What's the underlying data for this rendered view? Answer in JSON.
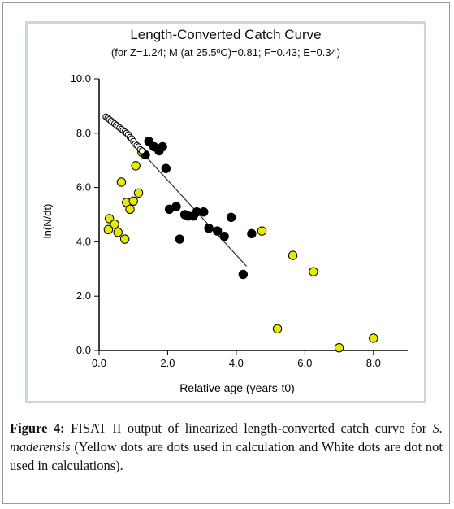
{
  "chart_data": {
    "type": "scatter",
    "title": "Length-Converted Catch Curve",
    "subtitle": "(for Z=1.24; M (at 25.5ºC)=0.81; F=0.43; E=0.34)",
    "xlabel": "Relative age (years-t0)",
    "ylabel": "ln(N/dt)",
    "xlim": [
      0,
      9.0
    ],
    "ylim": [
      0,
      10.0
    ],
    "x_ticks": [
      "0.0",
      "2.0",
      "4.0",
      "6.0",
      "8.0"
    ],
    "y_ticks": [
      "0.0",
      "2.0",
      "4.0",
      "6.0",
      "8.0",
      "10.0"
    ],
    "grid": false,
    "series": [
      {
        "color": "#e8e800",
        "points": [
          [
            0.27,
            4.45
          ],
          [
            0.3,
            4.85
          ],
          [
            0.45,
            4.65
          ],
          [
            0.55,
            4.35
          ],
          [
            0.65,
            6.2
          ],
          [
            0.75,
            4.1
          ],
          [
            0.8,
            5.45
          ],
          [
            0.9,
            5.2
          ],
          [
            1.0,
            5.5
          ],
          [
            1.07,
            6.8
          ],
          [
            1.15,
            5.8
          ],
          [
            1.25,
            7.3
          ],
          [
            4.75,
            4.4
          ],
          [
            5.65,
            3.5
          ],
          [
            6.25,
            2.9
          ],
          [
            5.2,
            0.8
          ],
          [
            7.0,
            0.1
          ],
          [
            8.0,
            0.45
          ]
        ]
      },
      {
        "color": "#000000",
        "points": [
          [
            1.35,
            7.2
          ],
          [
            1.45,
            7.7
          ],
          [
            1.6,
            7.5
          ],
          [
            1.75,
            7.35
          ],
          [
            1.85,
            7.5
          ],
          [
            1.95,
            6.7
          ],
          [
            2.05,
            5.2
          ],
          [
            2.25,
            5.3
          ],
          [
            2.35,
            4.1
          ],
          [
            2.5,
            5.0
          ],
          [
            2.6,
            4.95
          ],
          [
            2.75,
            4.95
          ],
          [
            2.85,
            5.1
          ],
          [
            3.05,
            5.1
          ],
          [
            3.2,
            4.5
          ],
          [
            3.45,
            4.4
          ],
          [
            3.65,
            4.2
          ],
          [
            3.85,
            4.9
          ],
          [
            4.2,
            2.8
          ],
          [
            4.45,
            4.3
          ]
        ]
      },
      {
        "color": "#ffffff",
        "points": [
          [
            0.2,
            8.6
          ],
          [
            0.25,
            8.55
          ],
          [
            0.3,
            8.5
          ],
          [
            0.35,
            8.45
          ],
          [
            0.4,
            8.4
          ],
          [
            0.45,
            8.35
          ],
          [
            0.5,
            8.3
          ],
          [
            0.55,
            8.25
          ],
          [
            0.6,
            8.2
          ],
          [
            0.65,
            8.15
          ],
          [
            0.7,
            8.1
          ],
          [
            0.75,
            8.05
          ],
          [
            0.8,
            8.0
          ],
          [
            0.85,
            7.95
          ],
          [
            0.9,
            7.85
          ],
          [
            0.95,
            7.8
          ],
          [
            1.0,
            7.7
          ],
          [
            1.05,
            7.6
          ],
          [
            1.1,
            7.55
          ],
          [
            1.15,
            7.5
          ],
          [
            1.2,
            7.4
          ],
          [
            1.25,
            7.35
          ]
        ]
      }
    ],
    "regression_line": [
      [
        1.25,
        7.3
      ],
      [
        4.3,
        3.1
      ]
    ]
  },
  "caption": {
    "label": "Figure 4:",
    "text_1": " FISAT II output of linearized length-converted catch curve for ",
    "species": "S. maderensis",
    "text_2": " (Yellow dots are dots used in calculation and White dots are dot not used in calculations)."
  }
}
